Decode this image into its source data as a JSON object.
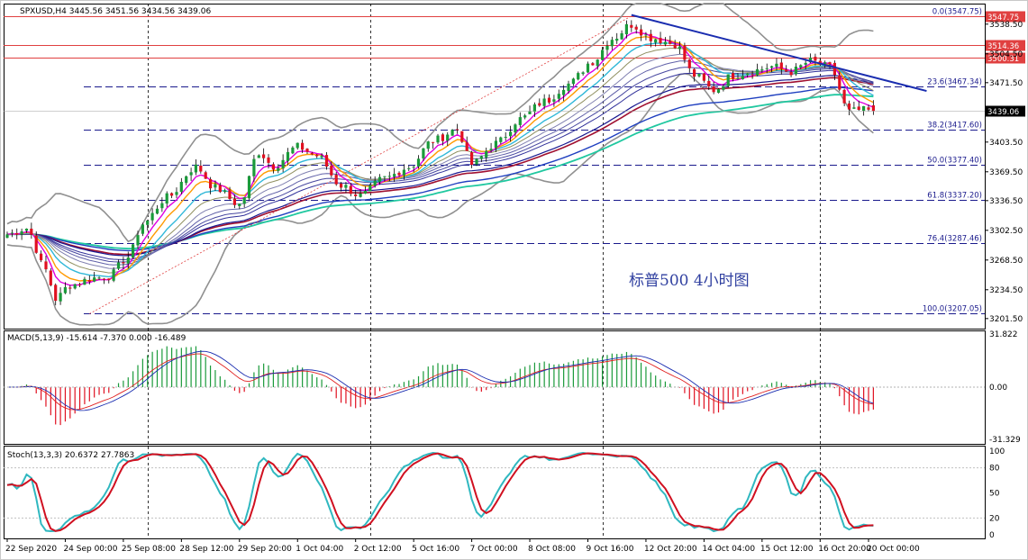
{
  "chart_data": {
    "type": "candlestick",
    "symbol_header": {
      "text": "SPXUSD,H4  3445.56 3451.56 3434.56 3439.06",
      "symbol": "SPXUSD",
      "timeframe": "H4",
      "open": 3445.56,
      "high": 3451.56,
      "low": 3434.56,
      "close": 3439.06
    },
    "annotation": "标普500  4小时图",
    "price_axis": {
      "ylim": [
        3190,
        3562
      ],
      "tick_labels": [
        "3538.50",
        "3504.50",
        "3471.50",
        "3437.50",
        "3403.50",
        "3369.50",
        "3336.50",
        "3302.50",
        "3268.50",
        "3234.50",
        "3201.50"
      ],
      "tick_values": [
        3538.5,
        3504.5,
        3471.5,
        3437.5,
        3403.5,
        3369.5,
        3336.5,
        3302.5,
        3268.5,
        3234.5,
        3201.5
      ],
      "current_price_label": "3439.06",
      "current_price": 3439.06
    },
    "time_axis": {
      "labels": [
        "22 Sep 2020",
        "24 Sep 00:00",
        "25 Sep 08:00",
        "28 Sep 12:00",
        "29 Sep 20:00",
        "1 Oct 04:00",
        "2 Oct 12:00",
        "5 Oct 16:00",
        "7 Oct 00:00",
        "8 Oct 08:00",
        "9 Oct 16:00",
        "12 Oct 20:00",
        "14 Oct 04:00",
        "15 Oct 12:00",
        "16 Oct 20:00",
        "20 Oct 00:00"
      ],
      "label_bar_index": [
        0,
        12,
        24,
        36,
        48,
        60,
        72,
        84,
        96,
        108,
        120,
        132,
        144,
        156,
        168,
        178
      ],
      "separator_bar_index": [
        29,
        75,
        123,
        168
      ],
      "bar_count": 180
    },
    "fibonacci": {
      "levels": [
        {
          "label": "0.0(3547.75)",
          "value": 3547.75
        },
        {
          "label": "23.6(3467.34)",
          "value": 3467.34
        },
        {
          "label": "38.2(3417.60)",
          "value": 3417.6
        },
        {
          "label": "50.0(3377.40)",
          "value": 3377.4
        },
        {
          "label": "61.8(3337.20)",
          "value": 3337.2
        },
        {
          "label": "76.4(3287.46)",
          "value": 3287.46
        },
        {
          "label": "100.0(3207.05)",
          "value": 3207.05
        }
      ],
      "line_color": "#1a1a8c",
      "top_line_color": "#e04040"
    },
    "horizontal_levels": [
      {
        "label": "3547.75",
        "value": 3547.75,
        "color": "#e04040"
      },
      {
        "label": "3514.36",
        "value": 3514.36,
        "color": "#e04040"
      },
      {
        "label": "3500.31",
        "value": 3500.31,
        "color": "#e04040"
      }
    ],
    "trendline": {
      "from_bar": 129,
      "from_value": 3549,
      "to_bar": 190,
      "to_value": 3462,
      "color": "#1a2db0"
    },
    "fib_anchor_line": {
      "from_bar": 17,
      "from_value": 3207,
      "to_bar": 129,
      "to_value": 3547.75,
      "color": "#e04040"
    },
    "price_anchors": {
      "bar_index": [
        0,
        4,
        8,
        10,
        13,
        18,
        21,
        25,
        28,
        33,
        39,
        43,
        48,
        52,
        55,
        60,
        64,
        69,
        73,
        78,
        83,
        88,
        93,
        96,
        101,
        106,
        111,
        116,
        121,
        125,
        129,
        133,
        138,
        142,
        146,
        150,
        154,
        158,
        162,
        166,
        170,
        174,
        176,
        179
      ],
      "close": [
        3298,
        3305,
        3257,
        3224,
        3240,
        3248,
        3250,
        3272,
        3310,
        3340,
        3375,
        3351,
        3332,
        3392,
        3376,
        3398,
        3388,
        3354,
        3342,
        3362,
        3375,
        3405,
        3418,
        3378,
        3402,
        3430,
        3450,
        3470,
        3496,
        3522,
        3538,
        3523,
        3516,
        3480,
        3463,
        3480,
        3485,
        3490,
        3484,
        3496,
        3489,
        3438,
        3440,
        3439
      ]
    },
    "moving_averages": [
      {
        "period": 5,
        "color": "#e000e0",
        "width": 1.4
      },
      {
        "period": 8,
        "color": "#ff9a00",
        "width": 1.4
      },
      {
        "period": 13,
        "color": "#30b8d8",
        "width": 1.4
      },
      {
        "period": 18,
        "color": "#909060",
        "width": 1.0
      },
      {
        "period": 24,
        "color": "#8080b0",
        "width": 1.0
      },
      {
        "period": 30,
        "color": "#6060a8",
        "width": 1.0
      },
      {
        "period": 36,
        "color": "#4848a0",
        "width": 1.0
      },
      {
        "period": 42,
        "color": "#30309a",
        "width": 1.0
      },
      {
        "period": 55,
        "color": "#181890",
        "width": 1.2
      },
      {
        "period": 60,
        "color": "#a01030",
        "width": 1.6
      },
      {
        "period": 80,
        "color": "#2040c0",
        "width": 1.4
      },
      {
        "period": 95,
        "color": "#20c8a0",
        "width": 1.8
      }
    ],
    "bollinger": {
      "period": 20,
      "deviation": 2.0,
      "color": "#909090"
    },
    "candle_colors": {
      "up": "#1a9a3a",
      "down": "#e01020"
    },
    "macd": {
      "label": "MACD(5,13,9) -15.614 -7.370 0.000 -16.489",
      "fast": 5,
      "slow": 13,
      "signal": 9,
      "ylim": [
        -34,
        34
      ],
      "tick_labels": [
        "31.822",
        "0.00",
        "-31.329"
      ],
      "tick_values": [
        31.822,
        0.0,
        -31.329
      ],
      "line_colors": {
        "macd": "#e02020",
        "signal": "#1a2db0",
        "hist_up": "#1a9a3a",
        "hist_down": "#e01020"
      }
    },
    "stochastic": {
      "label": "Stoch(13,3,3) 20.6372 27.7863",
      "k": 13,
      "d": 3,
      "slowing": 3,
      "ylim": [
        0,
        100
      ],
      "tick_labels": [
        "100",
        "80",
        "50",
        "20",
        "0"
      ],
      "tick_values": [
        100,
        80,
        50,
        20,
        0
      ],
      "line_colors": {
        "k": "#30b8c0",
        "d": "#d01020"
      }
    }
  }
}
